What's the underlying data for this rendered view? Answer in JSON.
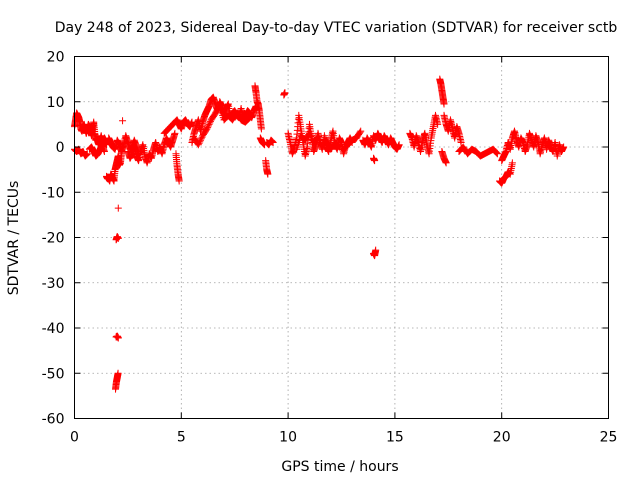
{
  "chart_data": {
    "type": "scatter",
    "title": "Day 248 of 2023, Sidereal Day-to-day VTEC variation (SDTVAR) for receiver sctb",
    "xlabel": "GPS time / hours",
    "ylabel": "SDTVAR / TECUs",
    "xlim": [
      0,
      25
    ],
    "ylim": [
      -60,
      20
    ],
    "xticks": [
      0,
      5,
      10,
      15,
      20,
      25
    ],
    "yticks": [
      -60,
      -50,
      -40,
      -30,
      -20,
      -10,
      0,
      10,
      20
    ],
    "xtick_labels": [
      "0",
      "5",
      "10",
      "15",
      "20",
      "25"
    ],
    "ytick_labels": [
      "-60",
      "-50",
      "-40",
      "-30",
      "-20",
      "-10",
      "0",
      "10",
      "20"
    ],
    "grid": true,
    "marker": "+",
    "color": "#ff0000",
    "series": [
      {
        "name": "SDTVAR",
        "segments": [
          {
            "x": [
              0.0,
              0.05,
              0.1,
              0.15,
              0.2,
              0.25,
              0.3,
              0.35,
              0.4,
              0.45,
              0.5,
              0.55,
              0.6,
              0.65,
              0.7,
              0.75,
              0.8,
              0.85,
              0.9,
              0.95,
              1.0,
              1.05,
              1.1,
              1.15,
              1.2,
              1.25,
              1.3,
              1.35,
              1.4,
              1.45,
              1.5
            ],
            "y": [
              4.5,
              6.0,
              7.5,
              7.0,
              6.5,
              5.5,
              4.0,
              3.5,
              4.5,
              5.0,
              4.0,
              3.0,
              4.0,
              5.0,
              4.5,
              3.5,
              2.5,
              4.0,
              5.5,
              3.0,
              1.5,
              2.0,
              1.0,
              0.5,
              1.5,
              2.5,
              1.0,
              0.0,
              2.0,
              1.5,
              0.5
            ]
          },
          {
            "x": [
              0.0,
              0.1,
              0.2,
              0.3,
              0.4,
              0.5,
              0.6
            ],
            "y": [
              -0.5,
              -1.0,
              -0.5,
              -1.5,
              -1.0,
              -2.0,
              -1.5
            ]
          },
          {
            "x": [
              0.7,
              0.8,
              0.9,
              1.0,
              1.1,
              1.2,
              1.3,
              1.4
            ],
            "y": [
              -0.5,
              0.0,
              -1.0,
              -2.0,
              -1.5,
              -0.5,
              0.5,
              -1.0
            ]
          },
          {
            "x": [
              1.5,
              1.55,
              1.6,
              1.65,
              1.7,
              1.75,
              1.8,
              1.85,
              1.9,
              1.95,
              2.0,
              2.05,
              2.1,
              2.15,
              2.2,
              2.25
            ],
            "y": [
              -6.5,
              -7.0,
              -7.0,
              -7.5,
              -6.0,
              -6.5,
              -7.0,
              -7.5,
              -5.0,
              -4.0,
              -3.0,
              -2.0,
              -4.0,
              -3.5,
              -1.5,
              0.5
            ]
          },
          {
            "x": [
              1.6,
              1.7,
              1.8,
              1.9,
              2.0,
              2.1,
              2.2,
              2.3,
              2.4,
              2.5,
              2.6,
              2.7,
              2.8,
              2.9,
              3.0
            ],
            "y": [
              2.0,
              1.0,
              0.0,
              -0.5,
              1.5,
              0.5,
              -1.0,
              0.5,
              2.5,
              1.0,
              -0.5,
              0.0,
              1.5,
              0.0,
              -1.5
            ]
          },
          {
            "x": [
              2.05
            ],
            "y": [
              -13.5
            ]
          },
          {
            "x": [
              1.95,
              2.0,
              2.05
            ],
            "y": [
              -20.5,
              -19.8,
              -20.2
            ]
          },
          {
            "x": [
              1.95,
              2.0,
              2.05
            ],
            "y": [
              -42.0,
              -41.8,
              -42.2
            ]
          },
          {
            "x": [
              1.92,
              1.96,
              2.0,
              2.04
            ],
            "y": [
              -53.5,
              -52.0,
              -51.0,
              -50.0
            ]
          },
          {
            "x": [
              2.25
            ],
            "y": [
              5.8
            ]
          },
          {
            "x": [
              2.5,
              2.6,
              2.7,
              2.8,
              2.9,
              3.0,
              3.1,
              3.2,
              3.3,
              3.4,
              3.5,
              3.6,
              3.7,
              3.8,
              3.9,
              4.0,
              4.1,
              4.2,
              4.3,
              4.4,
              4.5,
              4.6,
              4.7
            ],
            "y": [
              -1.0,
              -2.5,
              -1.5,
              0.0,
              -2.0,
              -3.0,
              -1.0,
              0.5,
              -2.0,
              -3.5,
              -1.5,
              -2.5,
              -0.5,
              1.0,
              -1.0,
              0.0,
              -1.5,
              0.5,
              2.0,
              1.0,
              0.0,
              1.5,
              3.0
            ]
          },
          {
            "x": [
              4.2,
              4.4,
              4.6,
              4.8,
              4.9,
              5.0,
              5.1,
              5.2,
              5.3,
              5.4,
              5.5
            ],
            "y": [
              3.0,
              4.0,
              5.0,
              6.0,
              5.0,
              4.0,
              5.5,
              6.0,
              5.0,
              4.5,
              5.5
            ]
          },
          {
            "x": [
              4.75,
              4.8,
              4.85,
              4.9
            ],
            "y": [
              -1.5,
              -4.0,
              -6.0,
              -7.5
            ]
          },
          {
            "x": [
              5.5,
              5.6,
              5.7,
              5.8,
              5.9,
              6.0,
              6.1,
              6.2,
              6.3,
              6.4,
              6.5,
              6.6,
              6.7,
              6.8,
              6.9,
              7.0,
              7.1,
              7.2,
              7.3,
              7.4,
              7.5,
              7.6,
              7.7,
              7.8,
              7.9,
              8.0,
              8.1,
              8.2,
              8.3,
              8.4,
              8.5
            ],
            "y": [
              1.0,
              3.0,
              4.5,
              6.0,
              3.5,
              5.5,
              7.0,
              8.0,
              9.0,
              10.5,
              11.0,
              9.5,
              8.0,
              10.0,
              9.0,
              7.0,
              8.5,
              9.5,
              6.5,
              7.5,
              8.0,
              7.0,
              6.5,
              8.5,
              6.0,
              7.0,
              8.0,
              7.5,
              6.5,
              8.0,
              9.0
            ]
          },
          {
            "x": [
              5.6,
              5.8,
              6.0,
              6.2,
              6.4,
              6.6,
              6.8,
              7.0,
              7.2,
              7.4,
              7.6,
              7.8,
              8.0,
              8.2
            ],
            "y": [
              2.0,
              0.5,
              2.5,
              4.0,
              6.0,
              7.5,
              9.0,
              6.0,
              7.0,
              6.0,
              7.5,
              6.0,
              5.5,
              6.5
            ]
          },
          {
            "x": [
              8.45,
              8.5,
              8.55,
              8.6,
              8.65,
              8.7,
              8.75
            ],
            "y": [
              13.5,
              12.0,
              10.0,
              9.5,
              8.0,
              6.0,
              4.0
            ]
          },
          {
            "x": [
              8.7,
              8.8,
              8.9
            ],
            "y": [
              2.0,
              1.0,
              0.5
            ]
          },
          {
            "x": [
              8.95,
              9.0,
              9.05
            ],
            "y": [
              -3.0,
              -5.0,
              -6.0
            ]
          },
          {
            "x": [
              9.0,
              9.1,
              9.2,
              9.3
            ],
            "y": [
              1.0,
              0.5,
              1.5,
              1.0
            ]
          },
          {
            "x": [
              9.8,
              9.85
            ],
            "y": [
              11.5,
              12.0
            ]
          },
          {
            "x": [
              10.0,
              10.1,
              10.2,
              10.3,
              10.4,
              10.5,
              10.6,
              10.7,
              10.8,
              10.9,
              11.0,
              11.1,
              11.2,
              11.3,
              11.4,
              11.5,
              11.6,
              11.7,
              11.8,
              11.9,
              12.0,
              12.1,
              12.2,
              12.3,
              12.4,
              12.5,
              12.6,
              12.7,
              12.8,
              12.9,
              13.0
            ],
            "y": [
              3.0,
              1.0,
              -1.5,
              0.0,
              2.0,
              7.0,
              4.0,
              1.0,
              -2.0,
              0.0,
              5.0,
              2.0,
              -1.0,
              0.5,
              3.0,
              1.0,
              -0.5,
              2.5,
              0.0,
              -1.0,
              1.5,
              3.5,
              0.5,
              -0.5,
              2.0,
              1.0,
              -1.5,
              0.5,
              1.0,
              2.0,
              1.0
            ]
          },
          {
            "x": [
              10.4,
              10.6,
              10.8,
              11.0,
              11.2,
              11.4,
              11.6,
              11.8,
              12.0,
              12.2,
              12.4
            ],
            "y": [
              -0.5,
              2.5,
              1.5,
              3.0,
              1.0,
              2.0,
              0.0,
              1.5,
              -0.5,
              1.0,
              0.0
            ]
          },
          {
            "x": [
              12.6,
              12.8,
              13.0,
              13.2,
              13.4
            ],
            "y": [
              -0.5,
              0.5,
              1.5,
              2.0,
              3.5
            ]
          },
          {
            "x": [
              13.5,
              13.6,
              13.7,
              13.8,
              13.9,
              14.0,
              14.1,
              14.2,
              14.3,
              14.4,
              14.5,
              14.6,
              14.7,
              14.8,
              14.9,
              15.0,
              15.1,
              15.2
            ],
            "y": [
              1.5,
              0.5,
              2.0,
              1.0,
              0.0,
              2.5,
              1.5,
              3.0,
              2.0,
              1.0,
              2.5,
              1.5,
              0.5,
              2.0,
              1.0,
              0.0,
              -0.5,
              0.5
            ]
          },
          {
            "x": [
              14.0,
              14.05
            ],
            "y": [
              -2.5,
              -3.0
            ]
          },
          {
            "x": [
              14.0,
              14.05,
              14.1
            ],
            "y": [
              -23.5,
              -24.0,
              -22.8
            ]
          },
          {
            "x": [
              15.7,
              15.8,
              15.9,
              16.0,
              16.1,
              16.2,
              16.3,
              16.4,
              16.5,
              16.6,
              16.7,
              16.8,
              16.9,
              17.0
            ],
            "y": [
              3.0,
              2.0,
              0.0,
              2.5,
              1.0,
              -1.0,
              1.5,
              3.0,
              0.5,
              -1.5,
              2.0,
              4.5,
              7.0,
              5.0
            ]
          },
          {
            "x": [
              17.1,
              17.15,
              17.2,
              17.25,
              17.3
            ],
            "y": [
              15.0,
              14.0,
              12.5,
              11.0,
              9.5
            ]
          },
          {
            "x": [
              17.3,
              17.4,
              17.5,
              17.6,
              17.7,
              17.8,
              17.9,
              18.0,
              18.1
            ],
            "y": [
              7.0,
              5.0,
              3.5,
              6.0,
              4.0,
              2.0,
              4.5,
              3.0,
              1.0
            ]
          },
          {
            "x": [
              17.2,
              17.3,
              17.4
            ],
            "y": [
              -1.0,
              -2.5,
              -3.5
            ]
          },
          {
            "x": [
              18.0,
              18.2,
              18.4,
              18.6,
              18.8,
              19.0,
              19.2,
              19.4,
              19.6,
              19.8
            ],
            "y": [
              -1.0,
              0.0,
              -1.5,
              -0.5,
              -1.0,
              -2.0,
              -1.5,
              -1.0,
              -0.5,
              -1.5
            ]
          },
          {
            "x": [
              19.9,
              20.0,
              20.1,
              20.2,
              20.3,
              20.4,
              20.5
            ],
            "y": [
              -7.5,
              -8.0,
              -7.0,
              -6.5,
              -5.5,
              -6.0,
              -3.5
            ]
          },
          {
            "x": [
              20.0,
              20.1,
              20.2,
              20.3,
              20.4,
              20.5,
              20.6,
              20.7,
              20.8,
              20.9,
              21.0,
              21.1,
              21.2,
              21.3,
              21.4,
              21.5,
              21.6,
              21.7,
              21.8,
              21.9,
              22.0,
              22.1,
              22.2,
              22.3,
              22.4,
              22.5,
              22.6,
              22.7,
              22.8,
              22.9
            ],
            "y": [
              -3.0,
              -2.0,
              -1.0,
              1.0,
              -0.5,
              2.0,
              3.5,
              1.5,
              0.0,
              2.0,
              1.0,
              -1.0,
              0.5,
              3.0,
              1.5,
              0.0,
              2.5,
              1.0,
              -1.5,
              0.5,
              2.0,
              -0.5,
              1.5,
              0.0,
              -1.0,
              1.0,
              -2.0,
              0.5,
              -1.0,
              0.0
            ]
          }
        ]
      }
    ]
  }
}
